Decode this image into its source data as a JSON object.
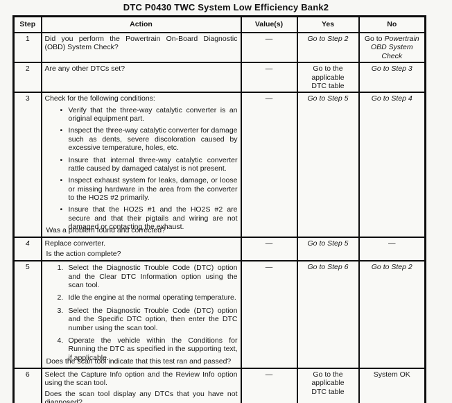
{
  "title": "DTC P0430 TWC System Low Efficiency Bank2",
  "headers": {
    "step": "Step",
    "action": "Action",
    "value": "Value(s)",
    "yes": "Yes",
    "no": "No"
  },
  "rows": [
    {
      "step": "1",
      "question": "Did you perform the Powertrain On-Board Diagnostic (OBD) System Check?",
      "value": "—",
      "yes": "Go to Step 2",
      "no_prefix": "Go to",
      "no_italic": "Powertrain OBD System Check"
    },
    {
      "step": "2",
      "question": "Are any other DTCs set?",
      "value": "—",
      "yes": "Go to the applicable DTC table",
      "no": "Go to Step 3"
    },
    {
      "step": "3",
      "intro": "Check for the following conditions:",
      "bullets": [
        "Verify that the three-way catalytic converter is an original equipment part.",
        "Inspect the three-way catalytic converter for damage such as dents, severe discoloration caused by excessive temperature, holes, etc.",
        "Insure that internal three-way catalytic converter rattle caused by damaged catalyst is not present.",
        "Inspect exhaust system for leaks, damage, or loose or missing hardware in the area from the converter to the HO2S #2 primarily.",
        "Insure that the HO2S #1 and the HO2S #2 are secure and that their pigtails and wiring are not damaged or contacting the exhaust."
      ],
      "question": "Was a problem found and corrected?",
      "value": "—",
      "yes": "Go to Step 5",
      "no": "Go to Step 4"
    },
    {
      "step": "4",
      "line1": "Replace converter.",
      "question": "Is the action complete?",
      "value": "—",
      "yes": "Go to Step 5",
      "no": "—"
    },
    {
      "step": "5",
      "list": [
        {
          "num": "1.",
          "text": "Select the Diagnostic Trouble Code (DTC) option and the Clear DTC Information option using the scan tool."
        },
        {
          "num": "2.",
          "text": "Idle the engine at the normal operating temperature."
        },
        {
          "num": "3.",
          "text": "Select the Diagnostic Trouble Code (DTC) option and the Specific DTC option, then enter the DTC number using the scan tool."
        },
        {
          "num": "4.",
          "text": "Operate the vehicle within the Conditions for Running the DTC as specified in the supporting text, if applicable."
        }
      ],
      "question": "Does the scan tool indicate that this test ran and passed?",
      "value": "—",
      "yes": "Go to Step 6",
      "no": "Go to Step 2"
    },
    {
      "step": "6",
      "line1": "Select the Capture Info option and the Review Info option using the scan tool.",
      "question": "Does the scan tool display any DTCs that you have not diagnosed?",
      "value": "—",
      "yes": "Go to the applicable DTC table",
      "no": "System OK"
    }
  ]
}
